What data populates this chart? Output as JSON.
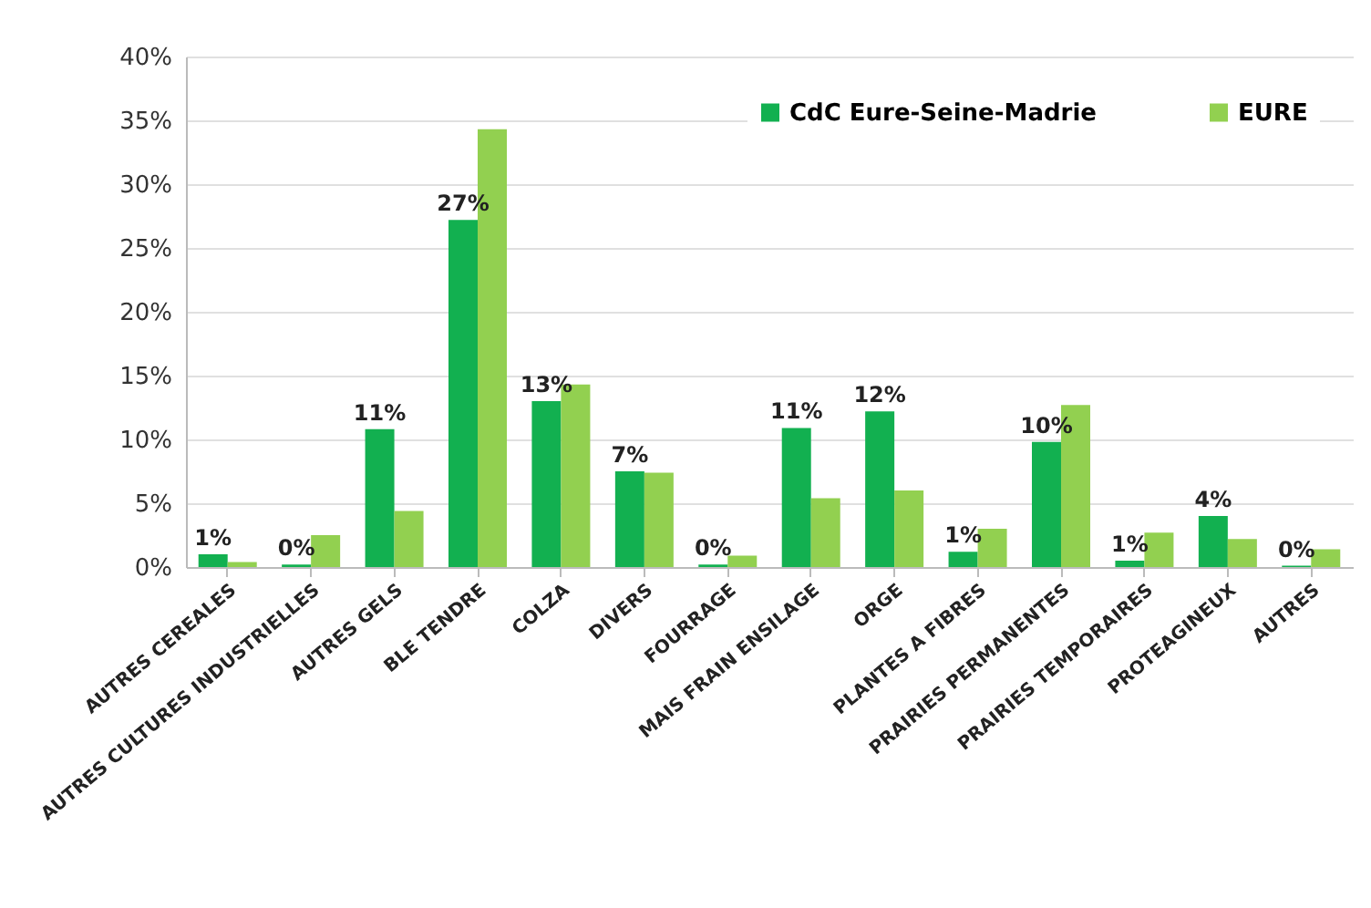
{
  "chart_data": {
    "type": "bar",
    "categories": [
      "AUTRES CEREALES",
      "AUTRES CULTURES INDUSTRIELLES",
      "AUTRES GELS",
      "BLE TENDRE",
      "COLZA",
      "DIVERS",
      "FOURRAGE",
      "MAIS FRAIN ENSILAGE",
      "ORGE",
      "PLANTES A FIBRES",
      "PRAIRIES PERMANENTES",
      "PRAIRIES TEMPORAIRES",
      "PROTEAGINEUX",
      "AUTRES"
    ],
    "series": [
      {
        "name": "CdC Eure-Seine-Madrie",
        "color": "#12b050",
        "values": [
          1.0,
          0.2,
          10.8,
          27.2,
          13.0,
          7.5,
          0.2,
          10.9,
          12.2,
          1.2,
          9.8,
          0.5,
          4.0,
          0.1
        ],
        "value_labels": [
          "1%",
          "0%",
          "11%",
          "27%",
          "13%",
          "7%",
          "0%",
          "11%",
          "12%",
          "1%",
          "10%",
          "1%",
          "4%",
          "0%"
        ]
      },
      {
        "name": "EURE",
        "color": "#92d050",
        "values": [
          0.4,
          2.5,
          4.4,
          34.3,
          14.3,
          7.4,
          0.9,
          5.4,
          6.0,
          3.0,
          12.7,
          2.7,
          2.2,
          1.4
        ]
      }
    ],
    "ylim": [
      0,
      40
    ],
    "yticks": [
      {
        "value": 0,
        "label": "0%"
      },
      {
        "value": 5,
        "label": "5%"
      },
      {
        "value": 10,
        "label": "10%"
      },
      {
        "value": 15,
        "label": "15%"
      },
      {
        "value": 20,
        "label": "20%"
      },
      {
        "value": 25,
        "label": "25%"
      },
      {
        "value": 30,
        "label": "30%"
      },
      {
        "value": 35,
        "label": "35%"
      },
      {
        "value": 40,
        "label": "40%"
      }
    ],
    "grid": "y",
    "legend": "top right"
  }
}
